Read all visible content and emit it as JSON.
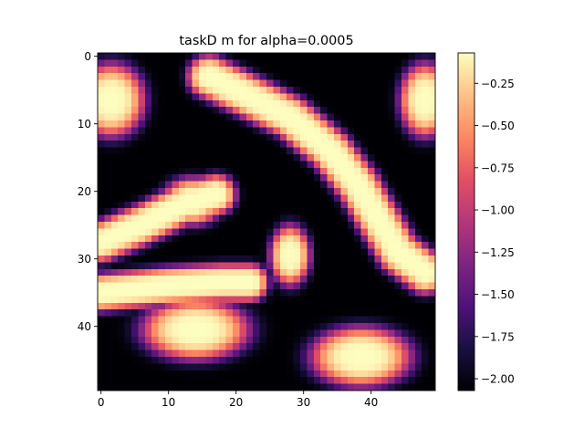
{
  "chart_data": {
    "type": "heatmap",
    "title": "taskD m for alpha=0.0005",
    "xlabel": "",
    "ylabel": "",
    "grid_size": [
      50,
      50
    ],
    "x_range": [
      -0.5,
      49.5
    ],
    "y_range": [
      49.5,
      -0.5
    ],
    "x_ticks": [
      0,
      10,
      20,
      30,
      40
    ],
    "y_ticks": [
      0,
      10,
      20,
      30,
      40
    ],
    "x_tick_labels": [
      "0",
      "10",
      "20",
      "30",
      "40"
    ],
    "y_tick_labels": [
      "0",
      "10",
      "20",
      "30",
      "40"
    ],
    "colormap": "magma",
    "color_range": [
      -2.07,
      -0.07
    ],
    "colorbar": {
      "ticks": [
        -2.0,
        -1.75,
        -1.5,
        -1.25,
        -1.0,
        -0.75,
        -0.5,
        -0.25
      ],
      "tick_labels": [
        "−2.00",
        "−1.75",
        "−1.50",
        "−1.25",
        "−1.00",
        "−0.75",
        "−0.50",
        "−0.25"
      ]
    },
    "high_regions": [
      {
        "shape": "ellipse",
        "cx": 1.5,
        "cy": 6.5,
        "rx": 5.0,
        "ry": 5.5
      },
      {
        "shape": "ellipse",
        "cx": 48.0,
        "cy": 6.5,
        "rx": 3.8,
        "ry": 5.5
      },
      {
        "shape": "polyline",
        "width": 3.2,
        "points": [
          [
            16,
            3
          ],
          [
            22,
            6
          ],
          [
            28,
            9
          ],
          [
            34,
            14
          ],
          [
            38,
            19
          ],
          [
            41,
            24
          ],
          [
            44,
            29
          ],
          [
            48,
            32
          ]
        ]
      },
      {
        "shape": "polyline",
        "width": 3.0,
        "points": [
          [
            0,
            27.5
          ],
          [
            6,
            25
          ],
          [
            12,
            22
          ],
          [
            17,
            20.5
          ]
        ]
      },
      {
        "shape": "ellipse",
        "cx": 13.5,
        "cy": 21.5,
        "rx": 4.5,
        "ry": 3.5
      },
      {
        "shape": "ellipse",
        "cx": 28.0,
        "cy": 29.5,
        "rx": 3.0,
        "ry": 4.5
      },
      {
        "shape": "polyline",
        "width": 2.8,
        "points": [
          [
            0,
            35
          ],
          [
            10,
            34
          ],
          [
            18,
            33.5
          ],
          [
            22,
            33.5
          ]
        ]
      },
      {
        "shape": "ellipse",
        "cx": 14.0,
        "cy": 40.5,
        "rx": 8.0,
        "ry": 4.5
      },
      {
        "shape": "ellipse",
        "cx": 38.5,
        "cy": 44.5,
        "rx": 7.5,
        "ry": 4.5
      }
    ]
  }
}
